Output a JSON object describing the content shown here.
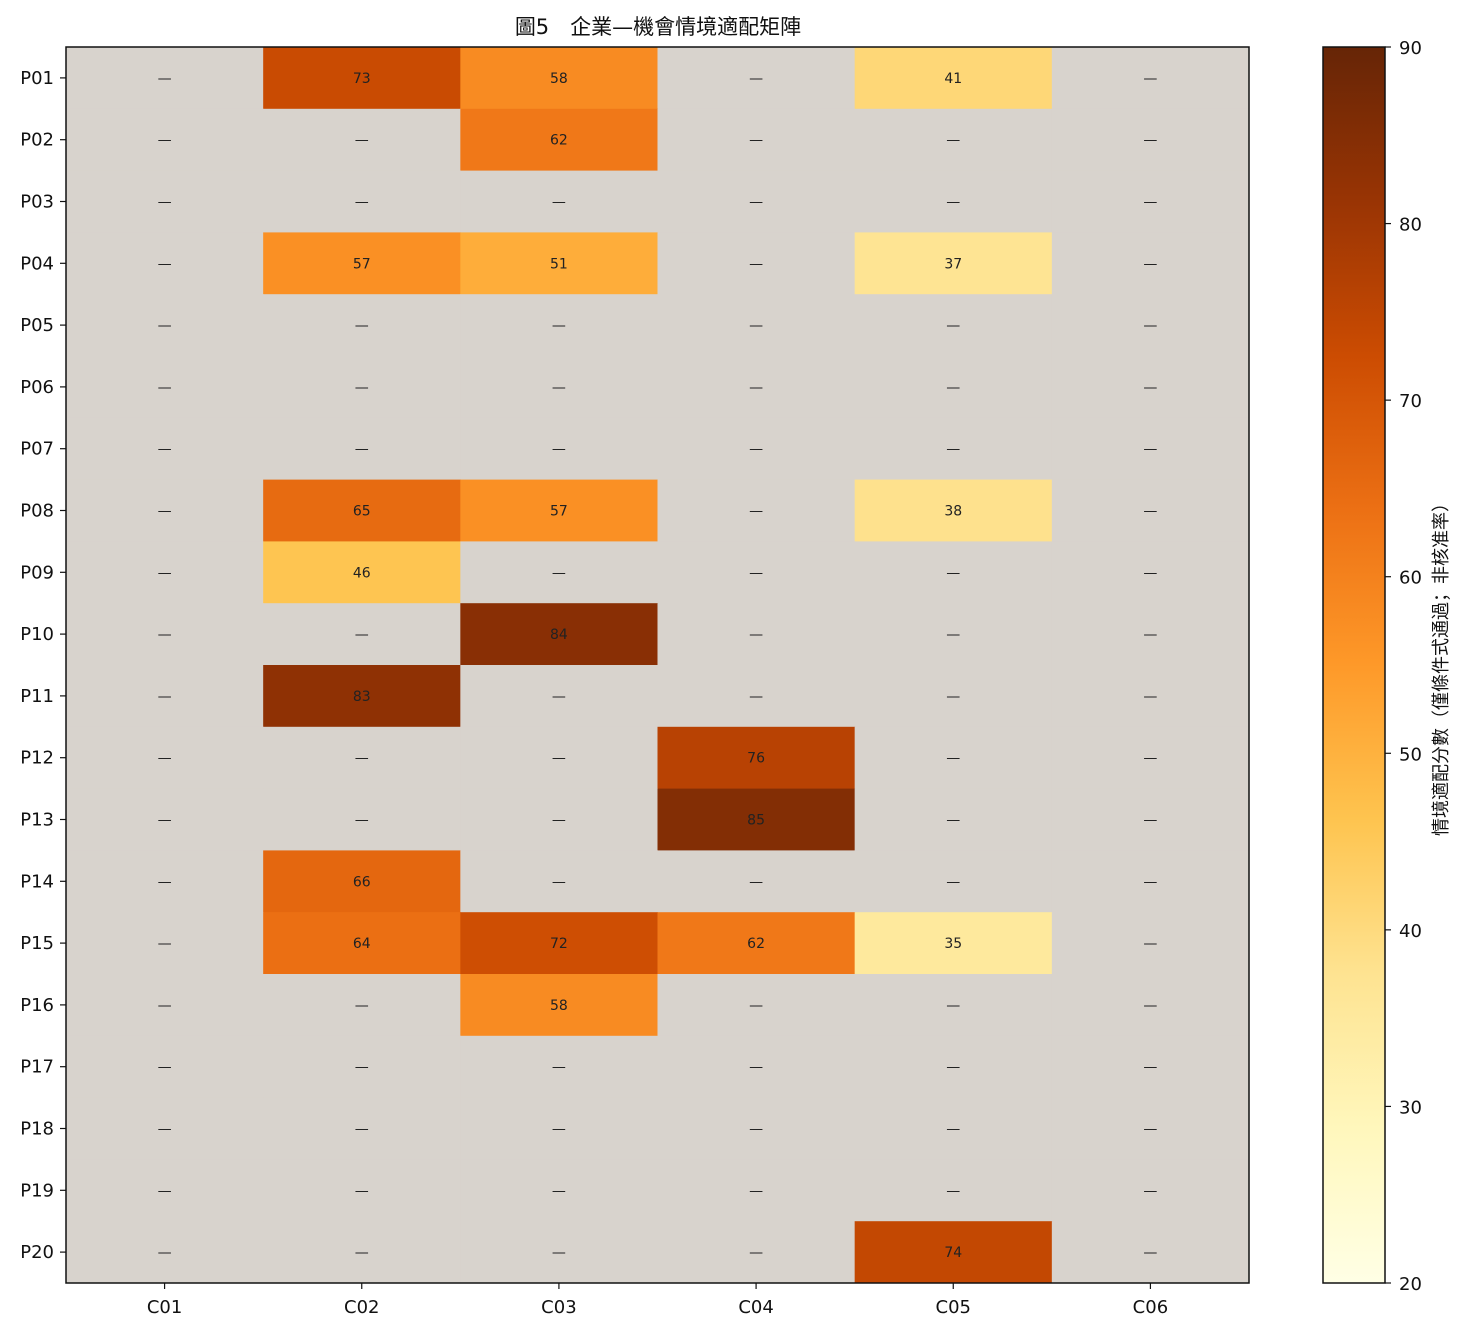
{
  "chart_data": {
    "type": "heatmap",
    "title": "圖5　企業—機會情境適配矩陣",
    "x_categories": [
      "C01",
      "C02",
      "C03",
      "C04",
      "C05",
      "C06"
    ],
    "y_categories": [
      "P01",
      "P02",
      "P03",
      "P04",
      "P05",
      "P06",
      "P07",
      "P08",
      "P09",
      "P10",
      "P11",
      "P12",
      "P13",
      "P14",
      "P15",
      "P16",
      "P17",
      "P18",
      "P19",
      "P20"
    ],
    "values": [
      [
        null,
        73,
        58,
        null,
        41,
        null
      ],
      [
        null,
        null,
        62,
        null,
        null,
        null
      ],
      [
        null,
        null,
        null,
        null,
        null,
        null
      ],
      [
        null,
        57,
        51,
        null,
        37,
        null
      ],
      [
        null,
        null,
        null,
        null,
        null,
        null
      ],
      [
        null,
        null,
        null,
        null,
        null,
        null
      ],
      [
        null,
        null,
        null,
        null,
        null,
        null
      ],
      [
        null,
        65,
        57,
        null,
        38,
        null
      ],
      [
        null,
        46,
        null,
        null,
        null,
        null
      ],
      [
        null,
        null,
        84,
        null,
        null,
        null
      ],
      [
        null,
        83,
        null,
        null,
        null,
        null
      ],
      [
        null,
        null,
        null,
        76,
        null,
        null
      ],
      [
        null,
        null,
        null,
        85,
        null,
        null
      ],
      [
        null,
        66,
        null,
        null,
        null,
        null
      ],
      [
        null,
        64,
        72,
        62,
        35,
        null
      ],
      [
        null,
        null,
        58,
        null,
        null,
        null
      ],
      [
        null,
        null,
        null,
        null,
        null,
        null
      ],
      [
        null,
        null,
        null,
        null,
        null,
        null
      ],
      [
        null,
        null,
        null,
        null,
        null,
        null
      ],
      [
        null,
        null,
        null,
        null,
        74,
        null
      ]
    ],
    "missing_label": "—",
    "missing_color": "#d8d3cd",
    "colorbar": {
      "label": "情境適配分數（僅條件式通過；非核准率）",
      "range": [
        20,
        90
      ],
      "ticks": [
        20,
        30,
        40,
        50,
        60,
        70,
        80,
        90
      ],
      "colormap": "YlOrBr",
      "position": "right"
    }
  }
}
